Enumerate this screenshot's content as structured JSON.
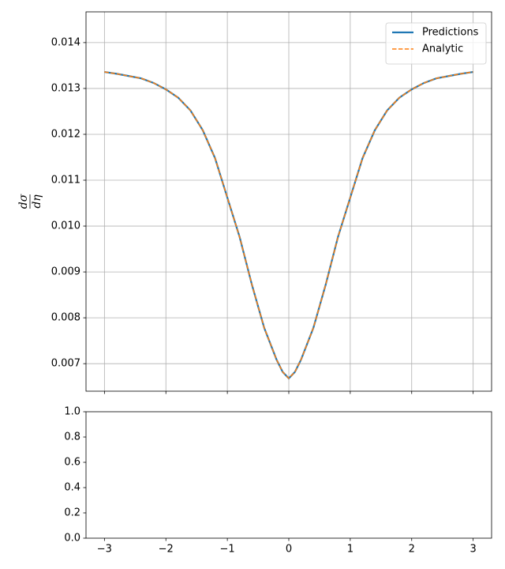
{
  "chart_data": [
    {
      "type": "line",
      "ylabel": [
        "dσ",
        "dη"
      ],
      "x": [
        -3,
        -2.8,
        -2.6,
        -2.4,
        -2.2,
        -2,
        -1.8,
        -1.6,
        -1.4,
        -1.2,
        -1,
        -0.8,
        -0.6,
        -0.4,
        -0.2,
        -0.1,
        0,
        0.1,
        0.2,
        0.4,
        0.6,
        0.8,
        1,
        1.2,
        1.4,
        1.6,
        1.8,
        2,
        2.2,
        2.4,
        2.6,
        2.8,
        3
      ],
      "series": [
        {
          "name": "Predictions",
          "color": "#1f77b4",
          "dash": "solid",
          "values": [
            0.01336,
            0.01332,
            0.01327,
            0.01322,
            0.01312,
            0.01298,
            0.0128,
            0.01252,
            0.01209,
            0.01148,
            0.01062,
            0.00976,
            0.00872,
            0.00778,
            0.00709,
            0.00682,
            0.00668,
            0.00682,
            0.00709,
            0.00778,
            0.00872,
            0.00976,
            0.01062,
            0.01148,
            0.01209,
            0.01252,
            0.0128,
            0.01298,
            0.01312,
            0.01322,
            0.01327,
            0.01332,
            0.01336
          ]
        },
        {
          "name": "Analytic",
          "color": "#ff7f0e",
          "dash": "dashed",
          "values": [
            0.01336,
            0.01332,
            0.01327,
            0.01322,
            0.01312,
            0.01298,
            0.0128,
            0.01252,
            0.01209,
            0.01148,
            0.01062,
            0.00976,
            0.00872,
            0.00778,
            0.00709,
            0.00682,
            0.00668,
            0.00682,
            0.00709,
            0.00778,
            0.00872,
            0.00976,
            0.01062,
            0.01148,
            0.01209,
            0.01252,
            0.0128,
            0.01298,
            0.01312,
            0.01322,
            0.01327,
            0.01332,
            0.01336
          ]
        }
      ],
      "xlim": [
        -3.3,
        3.3
      ],
      "xticks": [
        -3,
        -2,
        -1,
        0,
        1,
        2,
        3
      ],
      "ylim": [
        0.0064,
        0.01467
      ],
      "yticks": [
        {
          "value": 0.007,
          "label": "0.007"
        },
        {
          "value": 0.008,
          "label": "0.008"
        },
        {
          "value": 0.009,
          "label": "0.009"
        },
        {
          "value": 0.01,
          "label": "0.010"
        },
        {
          "value": 0.011,
          "label": "0.011"
        },
        {
          "value": 0.012,
          "label": "0.012"
        },
        {
          "value": 0.013,
          "label": "0.013"
        },
        {
          "value": 0.014,
          "label": "0.014"
        }
      ],
      "grid": true,
      "legend": "upper-right"
    },
    {
      "type": "line",
      "series": [],
      "xlim": [
        -3.3,
        3.3
      ],
      "xticks": [
        {
          "value": -3,
          "label": "−3"
        },
        {
          "value": -2,
          "label": "−2"
        },
        {
          "value": -1,
          "label": "−1"
        },
        0,
        1,
        2,
        3
      ],
      "ylim": [
        0,
        1
      ],
      "yticks": [
        {
          "value": 0,
          "label": "0.0"
        },
        0.2,
        0.4,
        0.6,
        0.8,
        {
          "value": 1,
          "label": "1.0"
        }
      ],
      "grid": false
    }
  ]
}
